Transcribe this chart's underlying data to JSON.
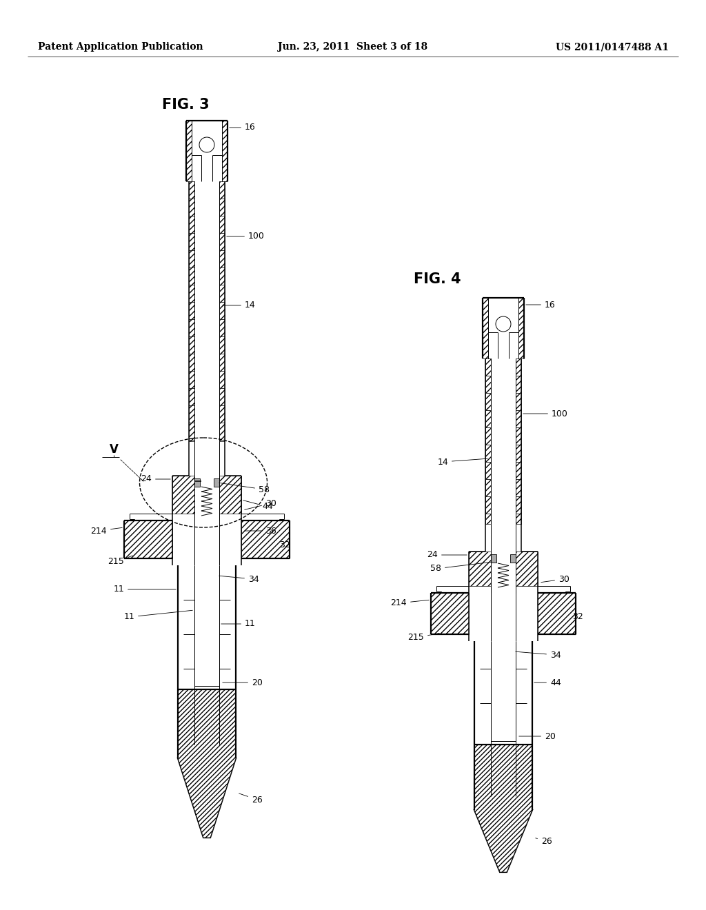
{
  "background_color": "#ffffff",
  "header_left": "Patent Application Publication",
  "header_center": "Jun. 23, 2011  Sheet 3 of 18",
  "header_right": "US 2011/0147488 A1",
  "fig3_title": "FIG. 3",
  "fig4_title": "FIG. 4",
  "line_color": "#000000",
  "text_color": "#000000",
  "font_size_header": 10,
  "font_size_label": 9
}
